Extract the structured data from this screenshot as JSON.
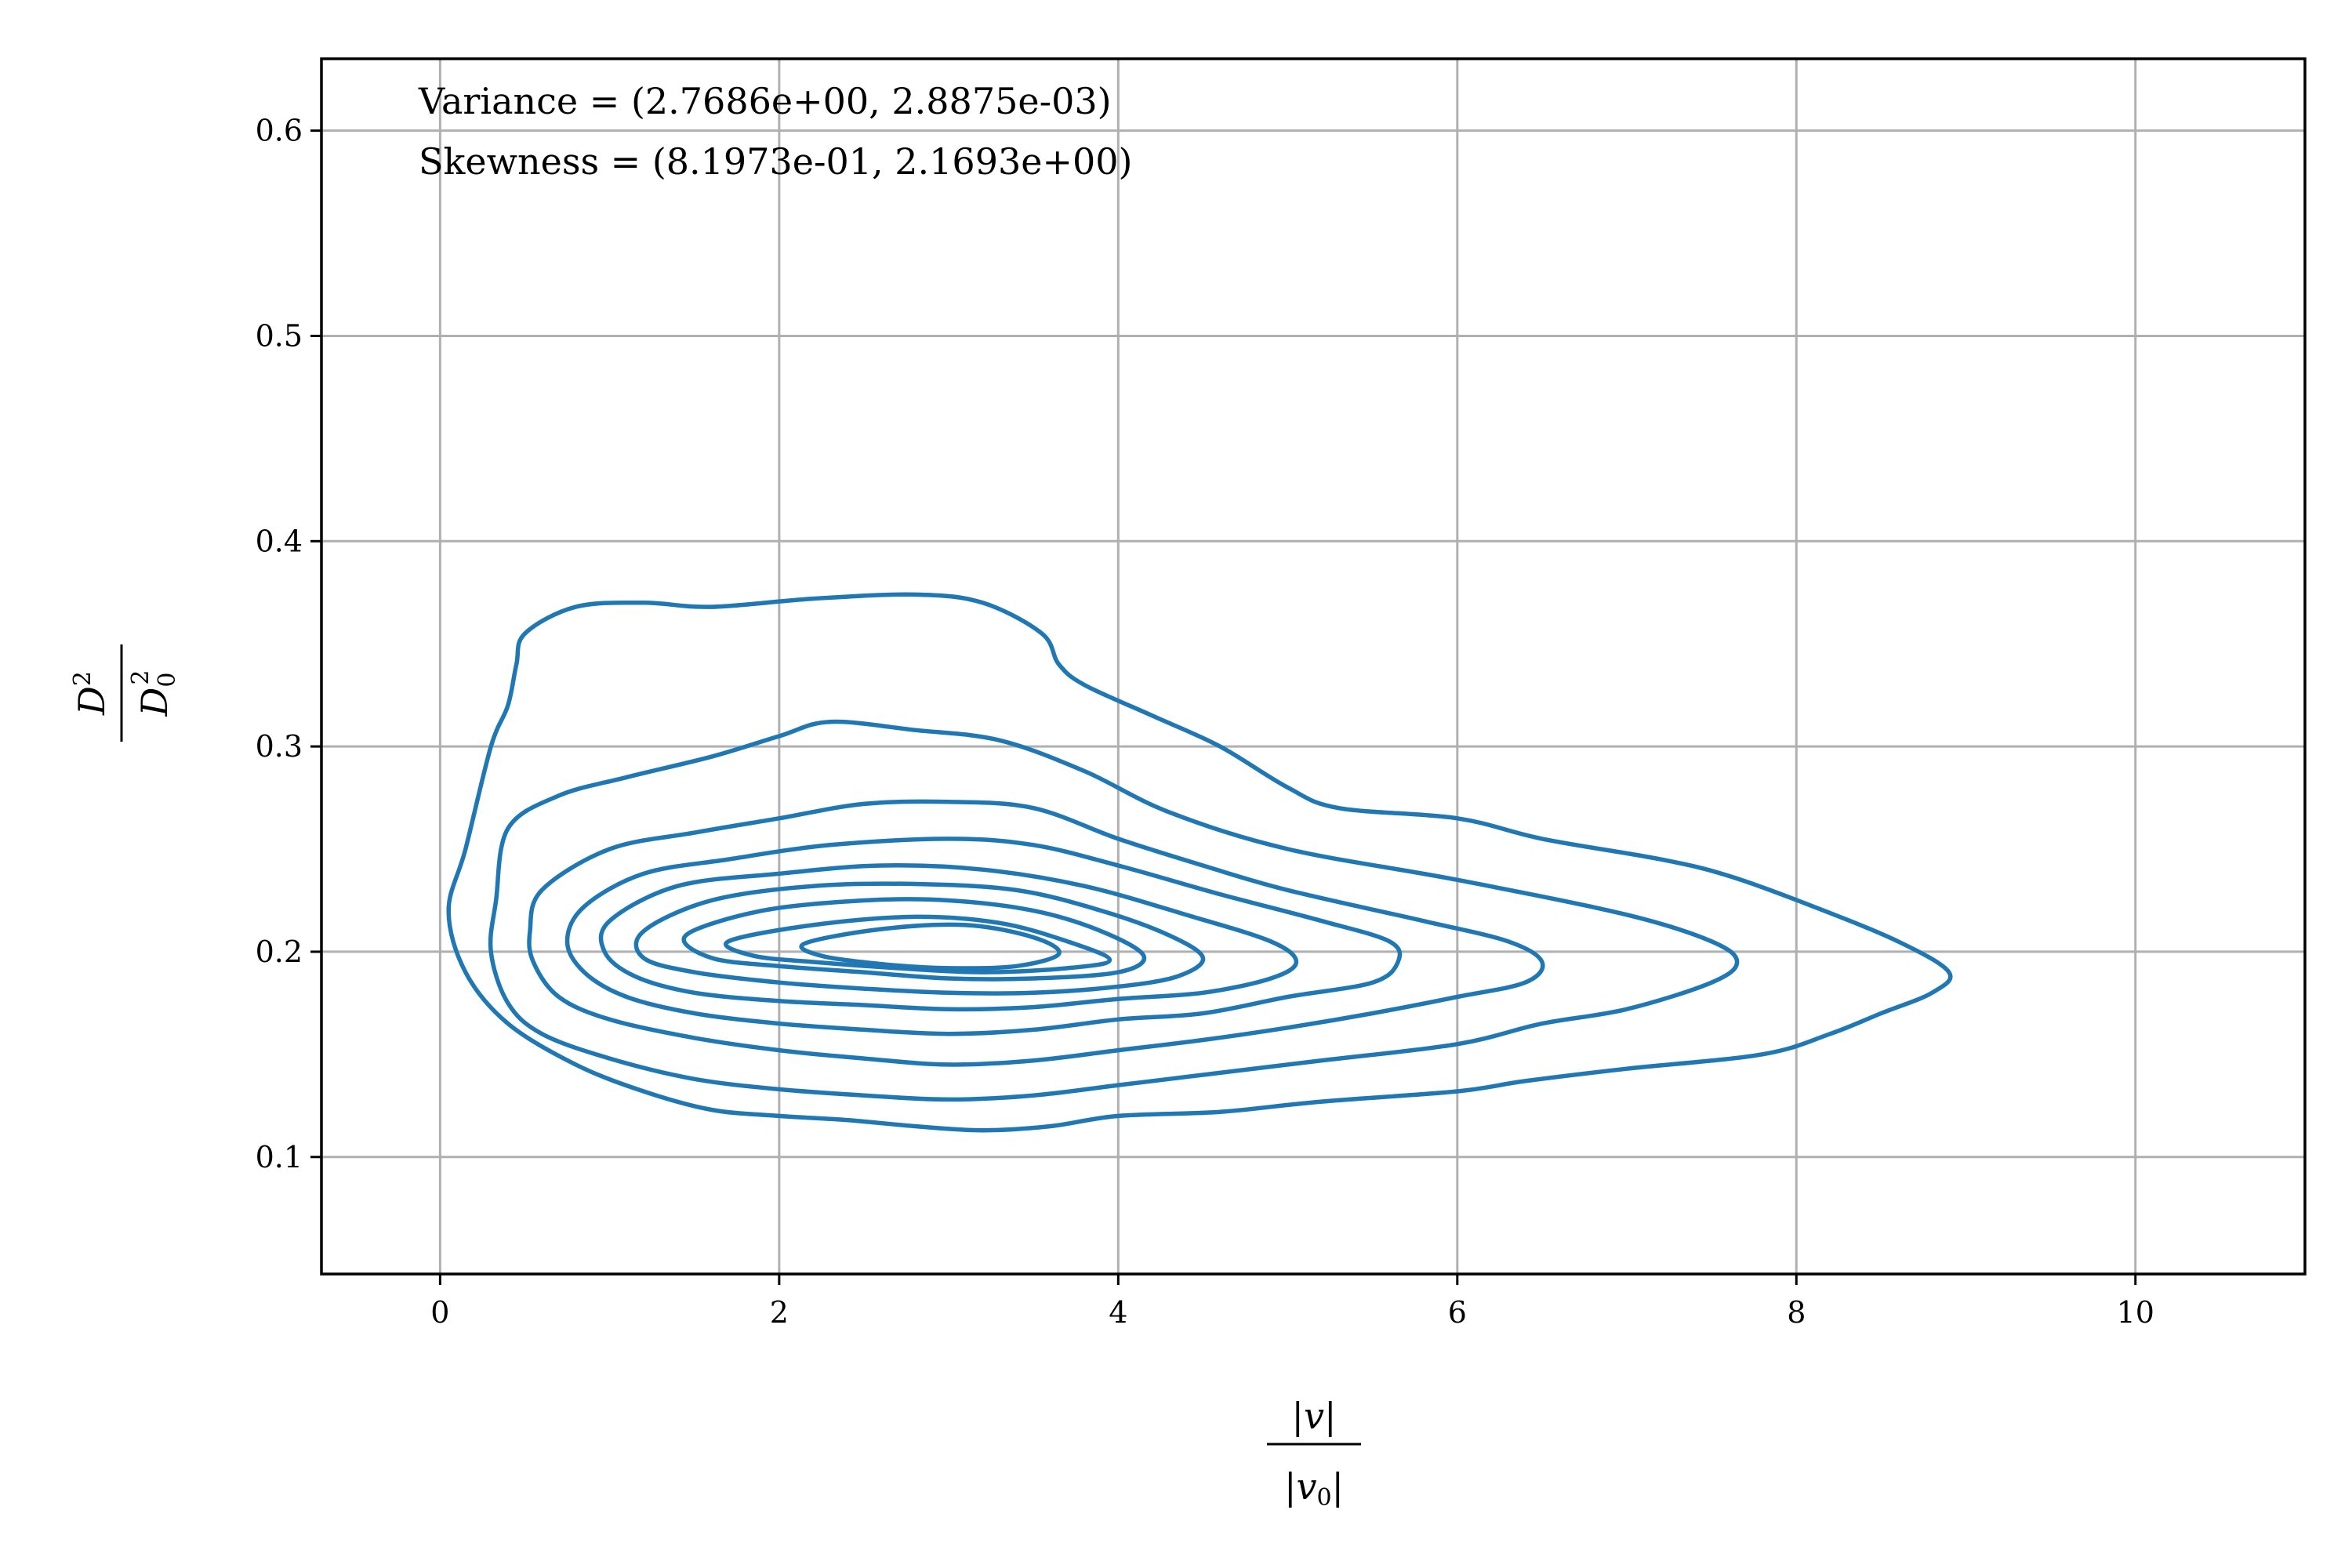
{
  "chart_data": {
    "type": "contour",
    "title": "",
    "xlabel": {
      "numerator": "|v|",
      "denominator": "|v",
      "denominator_sub": "0",
      "denominator_tail": "|"
    },
    "ylabel": {
      "numerator": "D",
      "numerator_sup": "2",
      "denominator": "D",
      "denominator_sub": "0",
      "denominator_sup": "2"
    },
    "xlim": [
      -0.7,
      11.0
    ],
    "ylim": [
      0.043,
      0.635
    ],
    "xticks": [
      0,
      2,
      4,
      6,
      8,
      10
    ],
    "yticks": [
      0.1,
      0.2,
      0.3,
      0.4,
      0.5,
      0.6
    ],
    "xtick_labels": [
      "0",
      "2",
      "4",
      "6",
      "8",
      "10"
    ],
    "ytick_labels": [
      "0.1",
      "0.2",
      "0.3",
      "0.4",
      "0.5",
      "0.6"
    ],
    "grid": true,
    "legend": "none",
    "annotations": [
      "Variance = (2.7686e+00, 2.8875e-03)",
      "Skewness = (8.1973e-01, 2.1693e+00)"
    ],
    "colors": {
      "line": "#1f77b4",
      "grid": "#b0b0b0",
      "frame": "#000000"
    },
    "contours": [
      {
        "level": 1,
        "points": [
          [
            0.5,
            0.355
          ],
          [
            0.8,
            0.368
          ],
          [
            1.2,
            0.37
          ],
          [
            1.6,
            0.368
          ],
          [
            2.2,
            0.372
          ],
          [
            2.8,
            0.374
          ],
          [
            3.2,
            0.37
          ],
          [
            3.55,
            0.355
          ],
          [
            3.65,
            0.34
          ],
          [
            3.8,
            0.33
          ],
          [
            4.2,
            0.315
          ],
          [
            4.6,
            0.3
          ],
          [
            5.0,
            0.28
          ],
          [
            5.3,
            0.27
          ],
          [
            6.0,
            0.265
          ],
          [
            6.5,
            0.255
          ],
          [
            7.2,
            0.245
          ],
          [
            7.6,
            0.237
          ],
          [
            8.1,
            0.222
          ],
          [
            8.6,
            0.205
          ],
          [
            8.9,
            0.19
          ],
          [
            8.8,
            0.18
          ],
          [
            8.5,
            0.17
          ],
          [
            8.2,
            0.16
          ],
          [
            7.8,
            0.15
          ],
          [
            7.0,
            0.143
          ],
          [
            6.4,
            0.137
          ],
          [
            6.0,
            0.132
          ],
          [
            5.2,
            0.127
          ],
          [
            4.6,
            0.122
          ],
          [
            4.0,
            0.12
          ],
          [
            3.6,
            0.115
          ],
          [
            3.2,
            0.113
          ],
          [
            2.8,
            0.115
          ],
          [
            2.4,
            0.118
          ],
          [
            2.0,
            0.12
          ],
          [
            1.6,
            0.123
          ],
          [
            1.2,
            0.132
          ],
          [
            0.8,
            0.145
          ],
          [
            0.4,
            0.165
          ],
          [
            0.15,
            0.19
          ],
          [
            0.05,
            0.22
          ],
          [
            0.15,
            0.25
          ],
          [
            0.3,
            0.3
          ],
          [
            0.4,
            0.32
          ],
          [
            0.45,
            0.34
          ],
          [
            0.5,
            0.355
          ]
        ]
      },
      {
        "level": 2,
        "points": [
          [
            0.4,
            0.26
          ],
          [
            0.7,
            0.276
          ],
          [
            1.1,
            0.285
          ],
          [
            1.6,
            0.295
          ],
          [
            2.0,
            0.305
          ],
          [
            2.3,
            0.312
          ],
          [
            2.8,
            0.308
          ],
          [
            3.3,
            0.303
          ],
          [
            3.8,
            0.288
          ],
          [
            4.3,
            0.268
          ],
          [
            5.0,
            0.25
          ],
          [
            6.0,
            0.235
          ],
          [
            7.0,
            0.218
          ],
          [
            7.5,
            0.205
          ],
          [
            7.65,
            0.195
          ],
          [
            7.5,
            0.185
          ],
          [
            7.0,
            0.172
          ],
          [
            6.5,
            0.165
          ],
          [
            6.0,
            0.155
          ],
          [
            5.2,
            0.147
          ],
          [
            4.5,
            0.14
          ],
          [
            4.0,
            0.135
          ],
          [
            3.5,
            0.13
          ],
          [
            3.0,
            0.128
          ],
          [
            2.5,
            0.13
          ],
          [
            2.0,
            0.133
          ],
          [
            1.5,
            0.138
          ],
          [
            1.0,
            0.148
          ],
          [
            0.6,
            0.16
          ],
          [
            0.4,
            0.175
          ],
          [
            0.3,
            0.2
          ],
          [
            0.33,
            0.225
          ],
          [
            0.4,
            0.26
          ]
        ]
      },
      {
        "level": 3,
        "points": [
          [
            0.6,
            0.23
          ],
          [
            1.0,
            0.25
          ],
          [
            1.5,
            0.258
          ],
          [
            2.0,
            0.265
          ],
          [
            2.5,
            0.272
          ],
          [
            3.0,
            0.273
          ],
          [
            3.5,
            0.27
          ],
          [
            4.0,
            0.255
          ],
          [
            4.5,
            0.242
          ],
          [
            5.0,
            0.23
          ],
          [
            5.8,
            0.215
          ],
          [
            6.3,
            0.205
          ],
          [
            6.5,
            0.195
          ],
          [
            6.4,
            0.185
          ],
          [
            6.0,
            0.178
          ],
          [
            5.5,
            0.17
          ],
          [
            5.0,
            0.163
          ],
          [
            4.5,
            0.157
          ],
          [
            4.0,
            0.152
          ],
          [
            3.5,
            0.147
          ],
          [
            3.0,
            0.145
          ],
          [
            2.5,
            0.148
          ],
          [
            2.0,
            0.152
          ],
          [
            1.5,
            0.158
          ],
          [
            1.0,
            0.167
          ],
          [
            0.7,
            0.178
          ],
          [
            0.55,
            0.195
          ],
          [
            0.53,
            0.21
          ],
          [
            0.6,
            0.23
          ]
        ]
      },
      {
        "level": 4,
        "points": [
          [
            0.85,
            0.222
          ],
          [
            1.2,
            0.238
          ],
          [
            1.7,
            0.245
          ],
          [
            2.3,
            0.252
          ],
          [
            3.0,
            0.255
          ],
          [
            3.5,
            0.252
          ],
          [
            4.0,
            0.242
          ],
          [
            4.6,
            0.228
          ],
          [
            5.2,
            0.215
          ],
          [
            5.6,
            0.205
          ],
          [
            5.65,
            0.195
          ],
          [
            5.5,
            0.185
          ],
          [
            5.0,
            0.178
          ],
          [
            4.5,
            0.17
          ],
          [
            4.0,
            0.167
          ],
          [
            3.5,
            0.162
          ],
          [
            3.0,
            0.16
          ],
          [
            2.5,
            0.162
          ],
          [
            2.0,
            0.165
          ],
          [
            1.5,
            0.17
          ],
          [
            1.1,
            0.178
          ],
          [
            0.85,
            0.19
          ],
          [
            0.75,
            0.205
          ],
          [
            0.85,
            0.222
          ]
        ]
      },
      {
        "level": 5,
        "points": [
          [
            1.0,
            0.215
          ],
          [
            1.4,
            0.232
          ],
          [
            2.0,
            0.238
          ],
          [
            2.6,
            0.242
          ],
          [
            3.2,
            0.24
          ],
          [
            3.8,
            0.232
          ],
          [
            4.4,
            0.218
          ],
          [
            4.9,
            0.205
          ],
          [
            5.05,
            0.195
          ],
          [
            4.9,
            0.187
          ],
          [
            4.5,
            0.18
          ],
          [
            4.0,
            0.177
          ],
          [
            3.5,
            0.173
          ],
          [
            3.0,
            0.172
          ],
          [
            2.5,
            0.174
          ],
          [
            2.0,
            0.176
          ],
          [
            1.5,
            0.18
          ],
          [
            1.15,
            0.188
          ],
          [
            0.97,
            0.2
          ],
          [
            1.0,
            0.215
          ]
        ]
      },
      {
        "level": 6,
        "points": [
          [
            1.2,
            0.21
          ],
          [
            1.6,
            0.225
          ],
          [
            2.2,
            0.232
          ],
          [
            2.8,
            0.233
          ],
          [
            3.4,
            0.23
          ],
          [
            3.9,
            0.22
          ],
          [
            4.3,
            0.208
          ],
          [
            4.5,
            0.197
          ],
          [
            4.35,
            0.188
          ],
          [
            4.0,
            0.183
          ],
          [
            3.5,
            0.18
          ],
          [
            3.0,
            0.18
          ],
          [
            2.5,
            0.182
          ],
          [
            2.0,
            0.185
          ],
          [
            1.5,
            0.19
          ],
          [
            1.2,
            0.197
          ],
          [
            1.2,
            0.21
          ]
        ]
      },
      {
        "level": 7,
        "points": [
          [
            1.45,
            0.208
          ],
          [
            1.9,
            0.22
          ],
          [
            2.5,
            0.225
          ],
          [
            3.0,
            0.225
          ],
          [
            3.5,
            0.22
          ],
          [
            3.9,
            0.21
          ],
          [
            4.15,
            0.198
          ],
          [
            4.0,
            0.19
          ],
          [
            3.5,
            0.187
          ],
          [
            3.0,
            0.187
          ],
          [
            2.5,
            0.19
          ],
          [
            2.0,
            0.193
          ],
          [
            1.6,
            0.197
          ],
          [
            1.45,
            0.208
          ]
        ]
      },
      {
        "level": 8,
        "points": [
          [
            1.7,
            0.205
          ],
          [
            2.2,
            0.213
          ],
          [
            2.8,
            0.217
          ],
          [
            3.3,
            0.214
          ],
          [
            3.7,
            0.205
          ],
          [
            3.95,
            0.196
          ],
          [
            3.7,
            0.192
          ],
          [
            3.2,
            0.19
          ],
          [
            2.7,
            0.192
          ],
          [
            2.2,
            0.195
          ],
          [
            1.85,
            0.198
          ],
          [
            1.7,
            0.205
          ]
        ]
      },
      {
        "level": 9,
        "points": [
          [
            2.15,
            0.204
          ],
          [
            2.6,
            0.211
          ],
          [
            3.1,
            0.213
          ],
          [
            3.5,
            0.207
          ],
          [
            3.65,
            0.199
          ],
          [
            3.4,
            0.193
          ],
          [
            3.0,
            0.192
          ],
          [
            2.6,
            0.194
          ],
          [
            2.25,
            0.198
          ],
          [
            2.15,
            0.204
          ]
        ]
      }
    ]
  }
}
